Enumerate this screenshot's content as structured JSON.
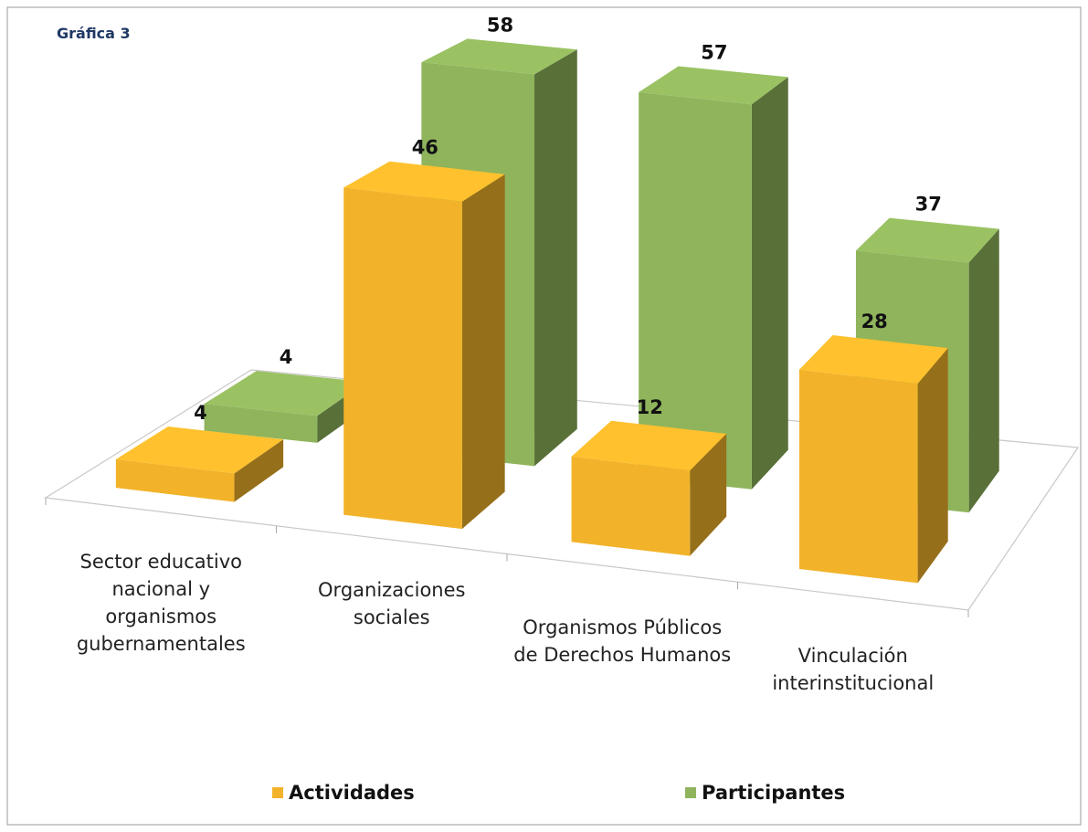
{
  "chart_data": {
    "type": "bar3d",
    "title": "Gráfica 3",
    "categories": [
      "Sector educativo nacional y organismos gubernamentales",
      "Organizaciones sociales",
      "Organismos Públicos de Derechos Humanos",
      "Vinculación interinstitucional"
    ],
    "series": [
      {
        "name": "Actividades",
        "color": "#f2b32a",
        "values": [
          4,
          46,
          12,
          28
        ]
      },
      {
        "name": "Participantes",
        "color": "#8fb45c",
        "values": [
          4,
          58,
          57,
          37
        ]
      }
    ],
    "legend": "bottom"
  }
}
